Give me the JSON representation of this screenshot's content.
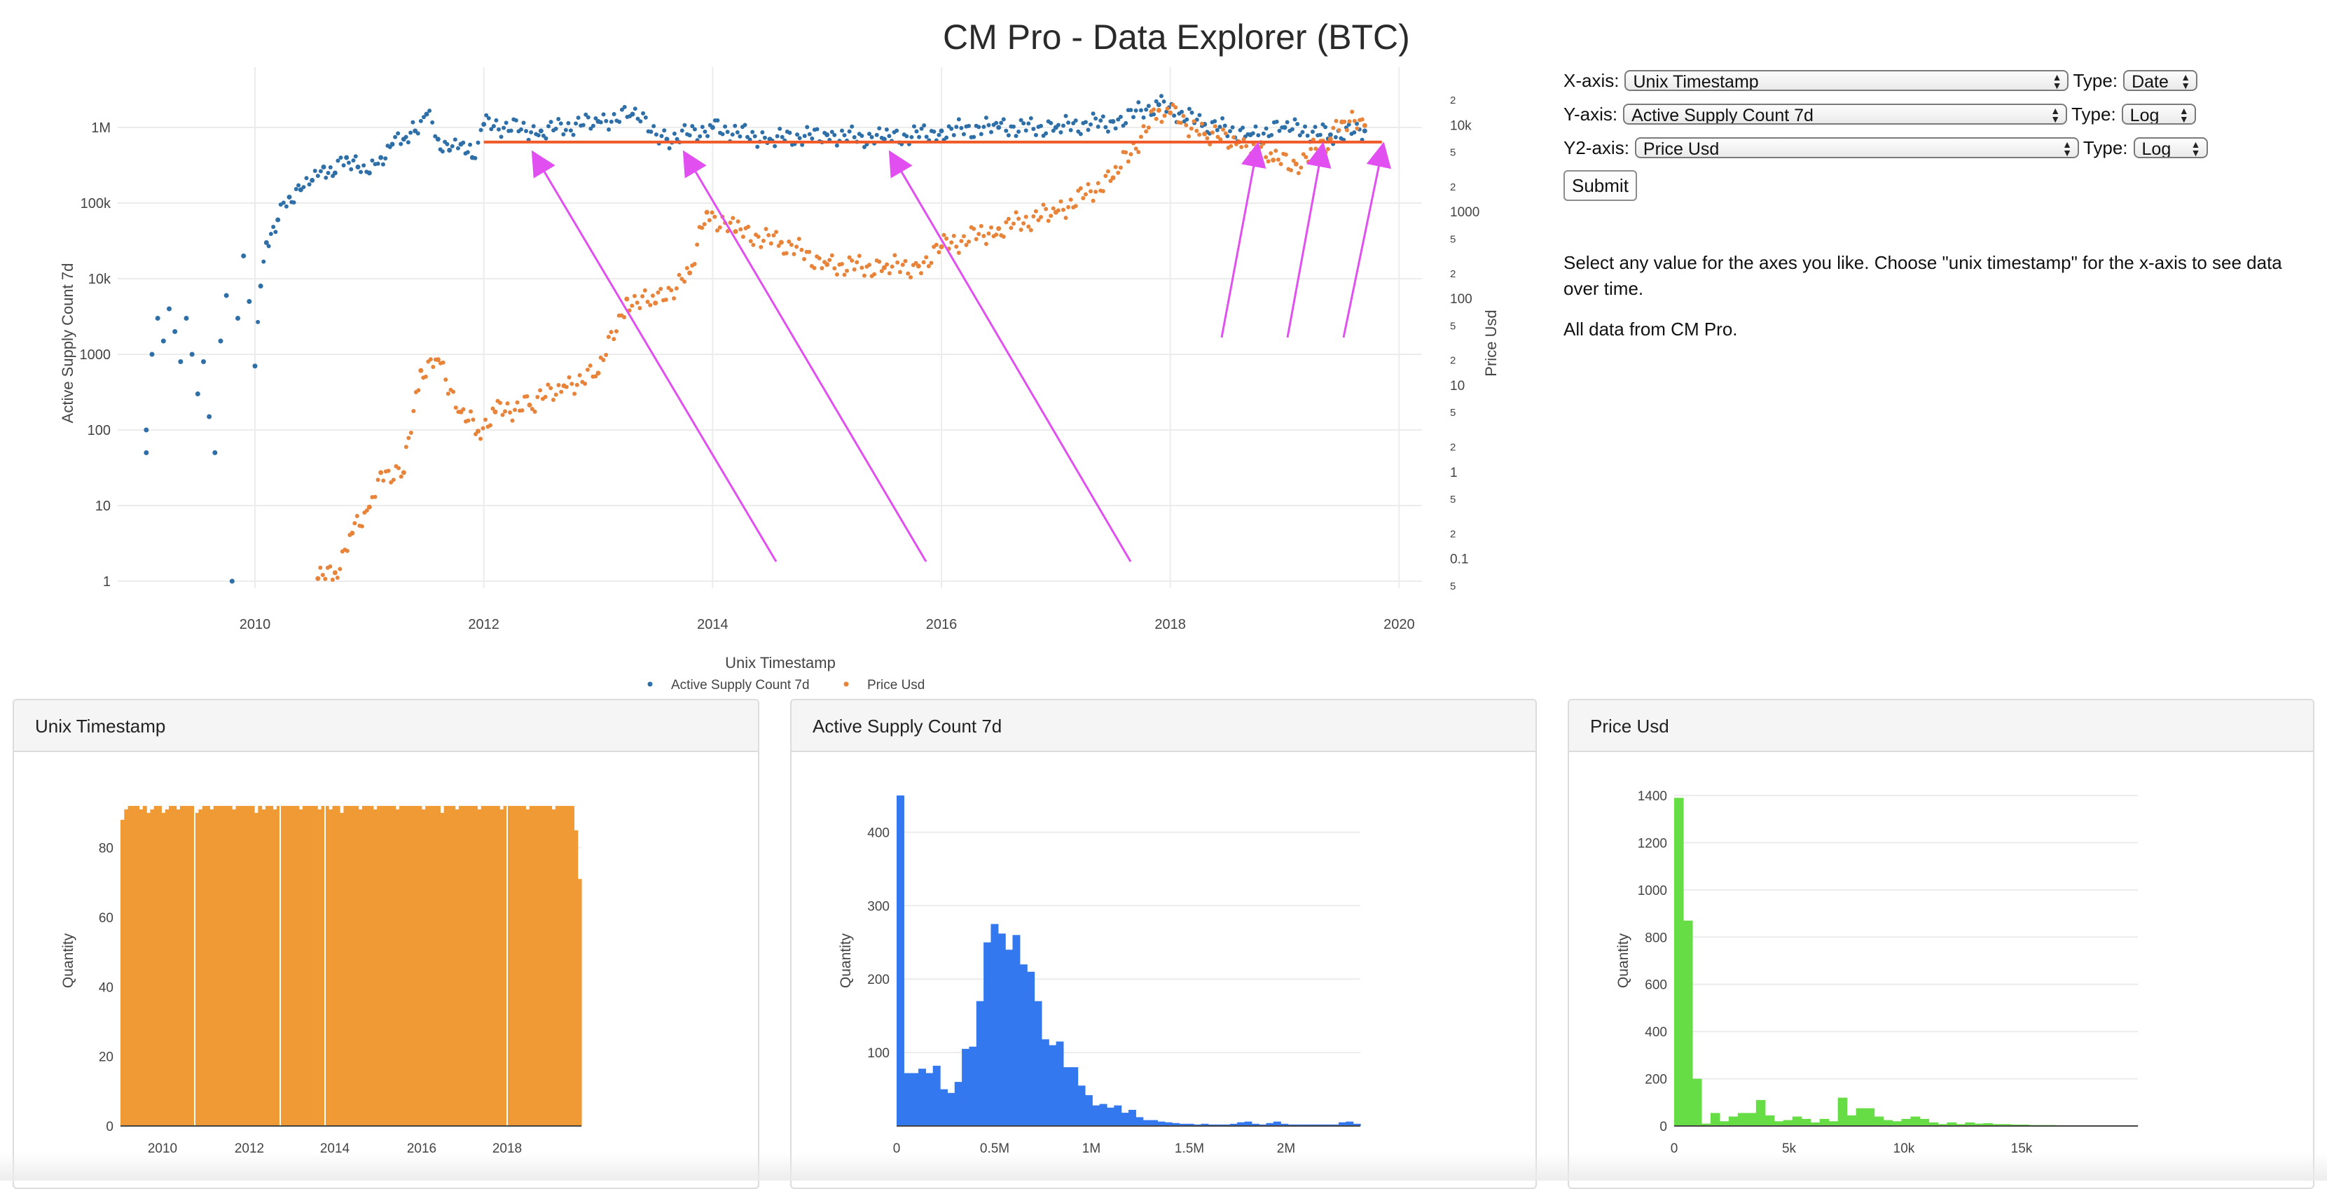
{
  "page": {
    "title": "CM Pro - Data Explorer (BTC)"
  },
  "controls": {
    "x_axis": {
      "label": "X-axis:",
      "value": "Unix Timestamp",
      "type_label": "Type:",
      "type_value": "Date"
    },
    "y_axis": {
      "label": "Y-axis:",
      "value": "Active Supply Count 7d",
      "type_label": "Type:",
      "type_value": "Log"
    },
    "y2_axis": {
      "label": "Y2-axis:",
      "value": "Price Usd",
      "type_label": "Type:",
      "type_value": "Log"
    },
    "submit_label": "Submit"
  },
  "info": {
    "text1": "Select any value for the axes you like. Choose \"unix timestamp\" for the x-axis to see data over time.",
    "text2": "All data from CM Pro."
  },
  "colors": {
    "series1": "#2f6fa8",
    "series2": "#e8833a",
    "hline": "#f05a28",
    "arrows": "#e14ff0",
    "hist_time": "#f09a36",
    "hist_supply": "#3478f0",
    "hist_price": "#66dd44",
    "grid": "#ececec",
    "axis_text": "#444444"
  },
  "chart_data": [
    {
      "type": "scatter",
      "title": "",
      "xlabel": "Unix Timestamp",
      "ylabel": "Active Supply Count 7d",
      "y2label": "Price Usd",
      "xscale": "date",
      "yscale": "log",
      "y2scale": "log",
      "x_ticks": [
        "2010",
        "2012",
        "2014",
        "2016",
        "2018",
        "2020"
      ],
      "y_ticks": [
        "1",
        "10",
        "100",
        "1000",
        "10k",
        "100k",
        "1M"
      ],
      "y2_ticks": [
        "5",
        "0.1",
        "2",
        "5",
        "1",
        "2",
        "5",
        "10",
        "2",
        "5",
        "100",
        "2",
        "5",
        "1000",
        "2",
        "5",
        "10k",
        "2"
      ],
      "legend": "bottom-center",
      "grid": true,
      "series": [
        {
          "name": "Active Supply Count 7d",
          "axis": "y",
          "points": [
            [
              2009.05,
              100
            ],
            [
              2009.05,
              50
            ],
            [
              2009.1,
              1000
            ],
            [
              2009.15,
              3000
            ],
            [
              2009.2,
              1500
            ],
            [
              2009.25,
              4000
            ],
            [
              2009.3,
              2000
            ],
            [
              2009.35,
              800
            ],
            [
              2009.4,
              3000
            ],
            [
              2009.45,
              1000
            ],
            [
              2009.5,
              300
            ],
            [
              2009.55,
              800
            ],
            [
              2009.6,
              150
            ],
            [
              2009.65,
              50
            ],
            [
              2009.7,
              1500
            ],
            [
              2009.75,
              6000
            ],
            [
              2009.8,
              1
            ],
            [
              2009.85,
              3000
            ],
            [
              2009.9,
              20000
            ],
            [
              2009.95,
              5000
            ],
            [
              2010.0,
              700
            ],
            [
              2010.05,
              8000
            ],
            [
              2010.1,
              30000
            ],
            [
              2010.2,
              60000
            ],
            [
              2010.3,
              120000
            ],
            [
              2010.4,
              150000
            ],
            [
              2010.5,
              200000
            ],
            [
              2010.6,
              300000
            ],
            [
              2010.7,
              250000
            ],
            [
              2010.8,
              400000
            ],
            [
              2010.9,
              300000
            ],
            [
              2011.0,
              250000
            ],
            [
              2011.1,
              400000
            ],
            [
              2011.2,
              600000
            ],
            [
              2011.3,
              700000
            ],
            [
              2011.4,
              900000
            ],
            [
              2011.5,
              1500000
            ],
            [
              2011.6,
              700000
            ],
            [
              2011.7,
              500000
            ],
            [
              2011.8,
              600000
            ],
            [
              2011.9,
              400000
            ],
            [
              2012.0,
              1100000
            ],
            [
              2012.5,
              900000
            ],
            [
              2013.0,
              1200000
            ],
            [
              2013.3,
              1500000
            ],
            [
              2013.6,
              700000
            ],
            [
              2014.0,
              1000000
            ],
            [
              2014.5,
              700000
            ],
            [
              2015.0,
              800000
            ],
            [
              2015.5,
              700000
            ],
            [
              2016.0,
              900000
            ],
            [
              2016.5,
              1000000
            ],
            [
              2017.0,
              1000000
            ],
            [
              2017.5,
              1200000
            ],
            [
              2017.9,
              2000000
            ],
            [
              2018.3,
              1100000
            ],
            [
              2018.7,
              800000
            ],
            [
              2019.0,
              1000000
            ],
            [
              2019.4,
              800000
            ],
            [
              2019.7,
              900000
            ]
          ]
        },
        {
          "name": "Price Usd",
          "axis": "y2",
          "points": [
            [
              2010.55,
              0.06
            ],
            [
              2010.7,
              0.07
            ],
            [
              2010.85,
              0.2
            ],
            [
              2011.0,
              0.4
            ],
            [
              2011.1,
              1
            ],
            [
              2011.3,
              1
            ],
            [
              2011.45,
              15
            ],
            [
              2011.6,
              20
            ],
            [
              2011.8,
              5
            ],
            [
              2011.95,
              3
            ],
            [
              2012.1,
              5
            ],
            [
              2012.4,
              6
            ],
            [
              2012.7,
              10
            ],
            [
              2013.0,
              14
            ],
            [
              2013.25,
              100
            ],
            [
              2013.5,
              90
            ],
            [
              2013.8,
              200
            ],
            [
              2013.95,
              1000
            ],
            [
              2014.2,
              600
            ],
            [
              2014.6,
              450
            ],
            [
              2015.0,
              250
            ],
            [
              2015.5,
              230
            ],
            [
              2015.8,
              240
            ],
            [
              2016.0,
              400
            ],
            [
              2016.5,
              650
            ],
            [
              2017.0,
              1000
            ],
            [
              2017.5,
              2500
            ],
            [
              2017.9,
              15000
            ],
            [
              2018.0,
              14000
            ],
            [
              2018.3,
              8000
            ],
            [
              2018.6,
              6500
            ],
            [
              2018.9,
              4000
            ],
            [
              2019.1,
              3600
            ],
            [
              2019.4,
              7000
            ],
            [
              2019.5,
              11000
            ],
            [
              2019.7,
              10000
            ]
          ]
        }
      ]
    },
    {
      "type": "bar",
      "title": "Unix Timestamp",
      "ylabel": "Quantity",
      "x_ticks": [
        "2010",
        "2012",
        "2014",
        "2016",
        "2018"
      ],
      "y_ticks": [
        "0",
        "20",
        "40",
        "60",
        "80"
      ],
      "ylim": [
        0,
        95
      ],
      "values": [
        88,
        91,
        92,
        92,
        92,
        91,
        92,
        90,
        91,
        92,
        92,
        90,
        91,
        92,
        92,
        91,
        92,
        92,
        92,
        92,
        90,
        91,
        92,
        92,
        91,
        92,
        92,
        92,
        92,
        92,
        91,
        92,
        92,
        92,
        92,
        92,
        90,
        92,
        91,
        92,
        92,
        91,
        92,
        92,
        92,
        92,
        92,
        92,
        91,
        92,
        92,
        92,
        92,
        91,
        92,
        92,
        91,
        92,
        92,
        90,
        92,
        92,
        92,
        92,
        91,
        92,
        92,
        92,
        91,
        92,
        92,
        92,
        92,
        92,
        91,
        92,
        92,
        92,
        92,
        92,
        92,
        91,
        92,
        92,
        92,
        92,
        90,
        92,
        92,
        92,
        91,
        92,
        92,
        92,
        92,
        92,
        91,
        92,
        92,
        92,
        92,
        92,
        91,
        92,
        92,
        92,
        92,
        92,
        92,
        91,
        92,
        92,
        92,
        92,
        92,
        92,
        91,
        92,
        92,
        92,
        92,
        92,
        85,
        71
      ]
    },
    {
      "type": "bar",
      "title": "Active Supply Count 7d",
      "ylabel": "Quantity",
      "x_ticks": [
        "0",
        "0.5M",
        "1M",
        "1.5M",
        "2M"
      ],
      "y_ticks": [
        "100",
        "200",
        "300",
        "400"
      ],
      "ylim": [
        0,
        450
      ],
      "values": [
        450,
        72,
        72,
        78,
        72,
        82,
        50,
        45,
        60,
        105,
        108,
        170,
        250,
        275,
        262,
        240,
        260,
        220,
        210,
        170,
        118,
        110,
        115,
        80,
        80,
        55,
        42,
        28,
        30,
        25,
        28,
        18,
        22,
        12,
        8,
        8,
        6,
        5,
        4,
        3,
        3,
        2,
        3,
        2,
        2,
        2,
        3,
        5,
        6,
        3,
        2,
        4,
        6,
        3,
        2,
        2,
        2,
        2,
        2,
        2,
        2,
        5,
        6,
        3
      ]
    },
    {
      "type": "bar",
      "title": "Price Usd",
      "ylabel": "Quantity",
      "x_ticks": [
        "0",
        "5k",
        "10k",
        "15k"
      ],
      "y_ticks": [
        "0",
        "200",
        "400",
        "600",
        "800",
        "1000",
        "1200",
        "1400"
      ],
      "ylim": [
        0,
        1400
      ],
      "values": [
        1390,
        870,
        200,
        10,
        55,
        20,
        40,
        55,
        55,
        110,
        45,
        20,
        25,
        40,
        30,
        15,
        30,
        20,
        120,
        45,
        75,
        75,
        40,
        25,
        20,
        30,
        40,
        30,
        15,
        8,
        15,
        8,
        15,
        10,
        12,
        8,
        8,
        6,
        6,
        4,
        4,
        4,
        3,
        3,
        3,
        3,
        3,
        2,
        2,
        2,
        2
      ]
    }
  ]
}
